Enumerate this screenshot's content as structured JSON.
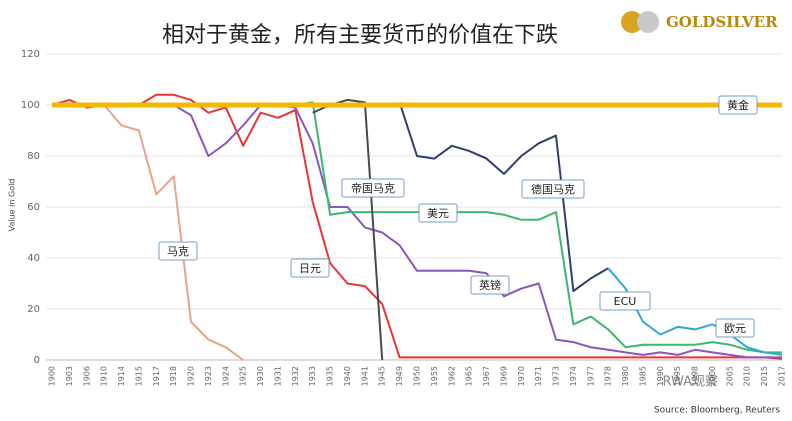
{
  "chart_data": {
    "type": "line",
    "title": "相对于黄金，所有主要货币的价值在下跌",
    "logo": "GOLDSILVER",
    "y_label": "Value in Gold",
    "source": "Source: Bloomberg, Reuters",
    "watermark": "RWA观察",
    "categories": [
      "1900",
      "1903",
      "1906",
      "1910",
      "1914",
      "1915",
      "1917",
      "1918",
      "1920",
      "1923",
      "1924",
      "1925",
      "1930",
      "1931",
      "1932",
      "1933",
      "1935",
      "1940",
      "1941",
      "1945",
      "1949",
      "1950",
      "1955",
      "1962",
      "1965",
      "1967",
      "1969",
      "1970",
      "1971",
      "1973",
      "1974",
      "1977",
      "1978",
      "1980",
      "1985",
      "1990",
      "1995",
      "1998",
      "2000",
      "2005",
      "2010",
      "2015",
      "2017"
    ],
    "ylim": [
      0,
      120
    ],
    "yticks": [
      0,
      20,
      40,
      60,
      80,
      100,
      120
    ],
    "grid": true,
    "series": [
      {
        "name": "马克",
        "color": "#e8a585",
        "values": [
          100,
          100,
          100,
          100,
          92,
          90,
          65,
          72,
          15,
          8,
          5,
          0,
          null,
          null,
          null,
          null,
          null,
          null,
          null,
          null,
          null,
          null,
          null,
          null,
          null,
          null,
          null,
          null,
          null,
          null,
          null,
          null,
          null,
          null,
          null,
          null,
          null,
          null,
          null,
          null,
          null,
          null,
          null
        ]
      },
      {
        "name": "日元",
        "color": "#e83535",
        "values": [
          100,
          102,
          99,
          100,
          100,
          100,
          104,
          104,
          102,
          97,
          99,
          84,
          97,
          95,
          98,
          62,
          38,
          30,
          29,
          22,
          1,
          1,
          1,
          1,
          1,
          1,
          1,
          1,
          1,
          1,
          1,
          1,
          1,
          1,
          1,
          1,
          1,
          1,
          1,
          1,
          1,
          1,
          0.5
        ]
      },
      {
        "name": "英镑",
        "color": "#8a55c0",
        "values": [
          100,
          100,
          100,
          100,
          100,
          100,
          100,
          100,
          96,
          80,
          85,
          92,
          100,
          100,
          99,
          85,
          60,
          60,
          52,
          50,
          45,
          35,
          35,
          35,
          35,
          34,
          25,
          28,
          30,
          8,
          7,
          5,
          4,
          3,
          2,
          3,
          2,
          4,
          3,
          2,
          1,
          1,
          1
        ]
      },
      {
        "name": "美元",
        "color": "#3cb870",
        "values": [
          100,
          100,
          100,
          100,
          100,
          100,
          100,
          100,
          100,
          100,
          100,
          100,
          100,
          100,
          100,
          101,
          57,
          58,
          58,
          58,
          58,
          58,
          58,
          58,
          58,
          58,
          57,
          55,
          55,
          58,
          14,
          17,
          12,
          5,
          6,
          6,
          6,
          6,
          7,
          6,
          4,
          3,
          3
        ]
      },
      {
        "name": "帝国马克",
        "color": "#4a4a4a",
        "values": [
          null,
          null,
          null,
          null,
          null,
          null,
          null,
          null,
          null,
          null,
          null,
          null,
          null,
          null,
          null,
          97,
          100,
          102,
          101,
          0,
          null,
          null,
          null,
          null,
          null,
          null,
          null,
          null,
          null,
          null,
          null,
          null,
          null,
          null,
          null,
          null,
          null,
          null,
          null,
          null,
          null,
          null,
          null
        ]
      },
      {
        "name": "德国马克",
        "color": "#2e3f70",
        "values": [
          null,
          null,
          null,
          null,
          null,
          null,
          null,
          null,
          null,
          null,
          null,
          null,
          null,
          null,
          null,
          null,
          null,
          null,
          null,
          null,
          101,
          80,
          79,
          84,
          82,
          79,
          73,
          80,
          85,
          88,
          27,
          32,
          36,
          null,
          null,
          null,
          null,
          null,
          null,
          null,
          null,
          null,
          null
        ]
      },
      {
        "name": "ECU",
        "color": "#30a8d8",
        "values": [
          null,
          null,
          null,
          null,
          null,
          null,
          null,
          null,
          null,
          null,
          null,
          null,
          null,
          null,
          null,
          null,
          null,
          null,
          null,
          null,
          null,
          null,
          null,
          null,
          null,
          null,
          null,
          null,
          null,
          null,
          null,
          null,
          36,
          28,
          15,
          10,
          13,
          12,
          14,
          null,
          null,
          null,
          null
        ]
      },
      {
        "name": "欧元",
        "color": "#30a8d8",
        "values": [
          null,
          null,
          null,
          null,
          null,
          null,
          null,
          null,
          null,
          null,
          null,
          null,
          null,
          null,
          null,
          null,
          null,
          null,
          null,
          null,
          null,
          null,
          null,
          null,
          null,
          null,
          null,
          null,
          null,
          null,
          null,
          null,
          null,
          null,
          null,
          null,
          null,
          null,
          14,
          10,
          5,
          3,
          2
        ]
      },
      {
        "name": "黄金",
        "color": "#f5b800",
        "values": [
          100,
          100,
          100,
          100,
          100,
          100,
          100,
          100,
          100,
          100,
          100,
          100,
          100,
          100,
          100,
          100,
          100,
          100,
          100,
          100,
          100,
          100,
          100,
          100,
          100,
          100,
          100,
          100,
          100,
          100,
          100,
          100,
          100,
          100,
          100,
          100,
          100,
          100,
          100,
          100,
          100,
          100,
          100
        ]
      }
    ]
  }
}
